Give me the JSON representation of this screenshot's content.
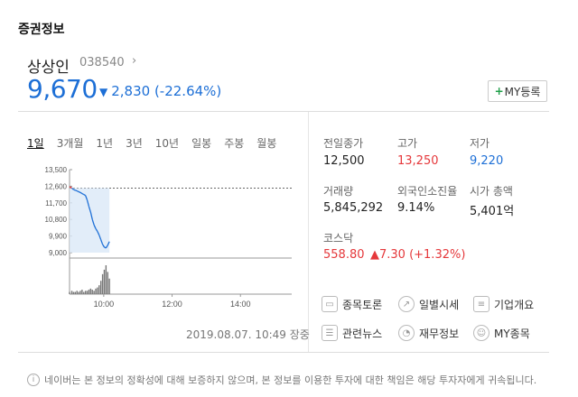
{
  "section_title": "증권정보",
  "stock": {
    "name": "상상인",
    "code": "038540",
    "price": "9,670",
    "change_arrow": "▼",
    "change": "2,830 (-22.64%)",
    "my_button_plus": "+",
    "my_button_label": "MY등록"
  },
  "tabs": [
    "1일",
    "3개월",
    "1년",
    "3년",
    "10년",
    "일봉",
    "주봉",
    "월봉"
  ],
  "chart_data": {
    "type": "line",
    "y_ticks": [
      "13,500",
      "12,600",
      "11,700",
      "10,800",
      "9,900",
      "9,000"
    ],
    "x_ticks": [
      "10:00",
      "12:00",
      "14:00"
    ],
    "ylim": [
      9000,
      13500
    ],
    "reference": 12500,
    "x_minutes": [
      0,
      4,
      7,
      10,
      13,
      16,
      19,
      22,
      25,
      28,
      31,
      34,
      37,
      40,
      43,
      46,
      49,
      52,
      55,
      58,
      61,
      64,
      67,
      70
    ],
    "price": [
      12580,
      12500,
      12420,
      12380,
      12350,
      12300,
      12260,
      12200,
      12150,
      12100,
      11850,
      11500,
      11200,
      10800,
      10500,
      10300,
      10150,
      9950,
      9700,
      9450,
      9300,
      9250,
      9400,
      9600
    ],
    "volume": [
      2,
      3,
      2,
      2,
      3,
      2,
      3,
      4,
      2,
      3,
      3,
      4,
      5,
      4,
      3,
      5,
      6,
      8,
      12,
      18,
      22,
      26,
      20,
      14
    ]
  },
  "timestamp": "2019.08.07. 10:49 장중",
  "stats": {
    "prev_close": {
      "label": "전일종가",
      "value": "12,500"
    },
    "high": {
      "label": "고가",
      "value": "13,250"
    },
    "low": {
      "label": "저가",
      "value": "9,220"
    },
    "volume": {
      "label": "거래량",
      "value": "5,845,292"
    },
    "foreign": {
      "label": "외국인소진율",
      "value": "9.14%"
    },
    "market_cap": {
      "label": "시가 총액",
      "value": "5,401억"
    },
    "index_name": "코스닥",
    "index_value": "558.80",
    "index_change": "▲7.30 (+1.32%)"
  },
  "links": [
    "종목토론",
    "일별시세",
    "기업개요",
    "관련뉴스",
    "재무정보",
    "MY종목"
  ],
  "notice": "네이버는 본 정보의 정확성에 대해 보증하지 않으며, 본 정보를 이용한 투자에 대한 책임은 해당 투자자에게 귀속됩니다.",
  "colors": {
    "down": "#1d6fd6",
    "up": "#e5383b",
    "accent": "#21a04a"
  }
}
